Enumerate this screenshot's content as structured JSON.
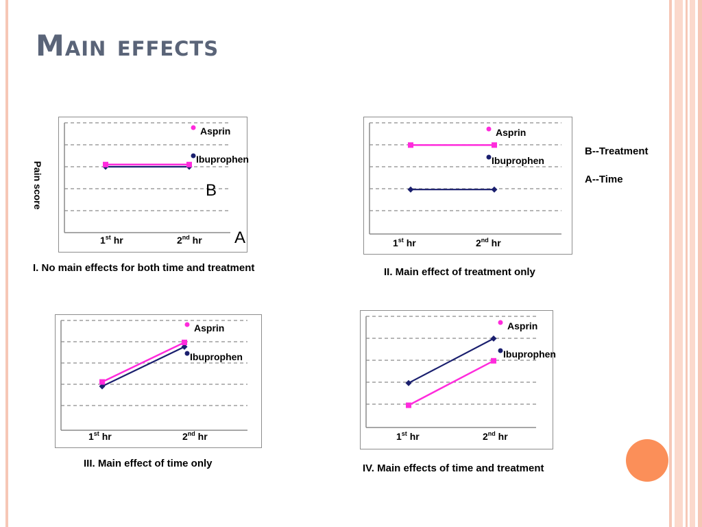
{
  "slide": {
    "title": "Main effects",
    "y_axis_label": "Pain score",
    "factor_b_letter": "B",
    "factor_a_letter": "A",
    "note_treatment": "B--Treatment",
    "note_time": "A--Time"
  },
  "legend": {
    "asprin": "Asprin",
    "ibuprophen": "Ibuprophen"
  },
  "ticks": {
    "first": "1",
    "first_sup": "st",
    "first_unit": " hr",
    "second": "2",
    "second_sup": "nd",
    "second_unit": " hr"
  },
  "captions": [
    "I. No main effects for both time and treatment",
    "II. Main effect of treatment only",
    "III. Main effect of time only",
    "IV. Main effects of time and treatment"
  ],
  "colors": {
    "asprin": "#ff2bdc",
    "ibuprophen": "#1a1f6e",
    "accent": "#fb8f59",
    "stripe": "#f6c7b6"
  },
  "chart_data": [
    {
      "type": "line",
      "caption": "I. No main effects for both time and treatment",
      "categories": [
        "1st hr",
        "2nd hr"
      ],
      "series": [
        {
          "name": "Asprin",
          "values": [
            3.1,
            3.1
          ]
        },
        {
          "name": "Ibuprophen",
          "values": [
            3.0,
            3.0
          ]
        }
      ],
      "ylim": [
        0,
        5
      ],
      "grid": true
    },
    {
      "type": "line",
      "caption": "II. Main effect of treatment only",
      "categories": [
        "1st hr",
        "2nd hr"
      ],
      "series": [
        {
          "name": "Asprin",
          "values": [
            4.0,
            4.0
          ]
        },
        {
          "name": "Ibuprophen",
          "values": [
            2.0,
            2.0
          ]
        }
      ],
      "ylim": [
        0,
        5
      ],
      "grid": true
    },
    {
      "type": "line",
      "caption": "III. Main effect of time only",
      "categories": [
        "1st hr",
        "2nd hr"
      ],
      "series": [
        {
          "name": "Asprin",
          "values": [
            2.2,
            4.0
          ]
        },
        {
          "name": "Ibuprophen",
          "values": [
            2.0,
            3.8
          ]
        }
      ],
      "ylim": [
        0,
        5
      ],
      "grid": true
    },
    {
      "type": "line",
      "caption": "IV. Main effects of time and treatment",
      "categories": [
        "1st hr",
        "2nd hr"
      ],
      "series": [
        {
          "name": "Asprin",
          "values": [
            1.0,
            3.0
          ]
        },
        {
          "name": "Ibuprophen",
          "values": [
            2.0,
            4.0
          ]
        }
      ],
      "ylim": [
        0,
        5
      ],
      "grid": true
    }
  ]
}
